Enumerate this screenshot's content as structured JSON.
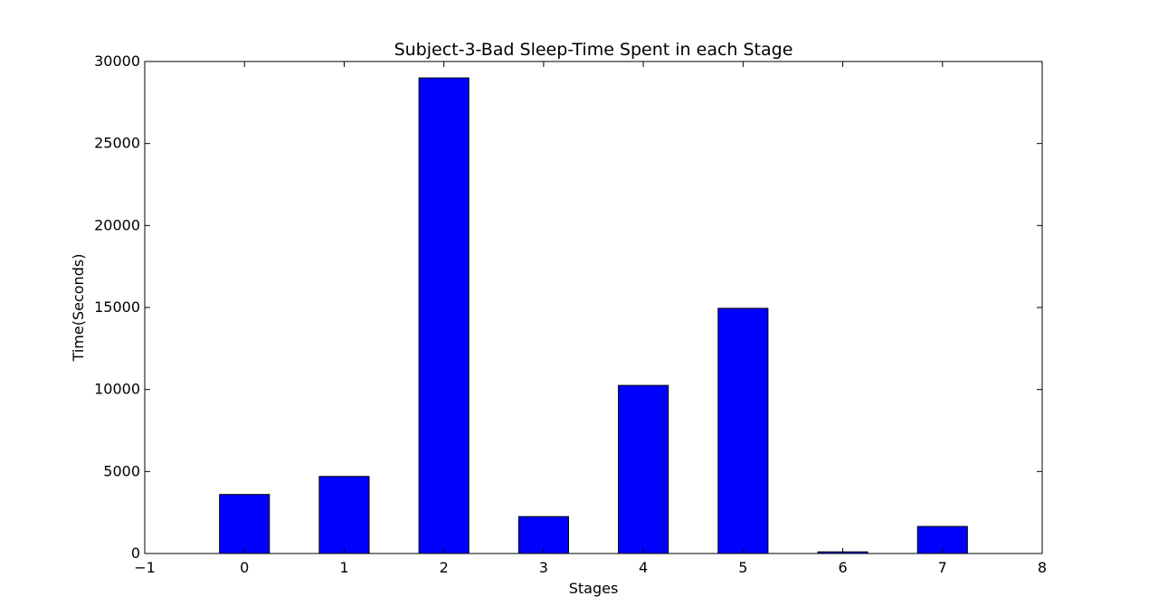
{
  "chart_data": {
    "type": "bar",
    "title": "Subject-3-Bad Sleep-Time Spent in each Stage",
    "xlabel": "Stages",
    "ylabel": "Time(Seconds)",
    "x": [
      0,
      1,
      2,
      3,
      4,
      5,
      6,
      7
    ],
    "values": [
      3600,
      4700,
      29000,
      2250,
      10250,
      14950,
      100,
      1650
    ],
    "xlim": [
      -1,
      8
    ],
    "ylim": [
      0,
      30000
    ],
    "xticks": [
      -1,
      0,
      1,
      2,
      3,
      4,
      5,
      6,
      7,
      8
    ],
    "xtick_labels": [
      "−1",
      "0",
      "1",
      "2",
      "3",
      "4",
      "5",
      "6",
      "7",
      "8"
    ],
    "yticks": [
      0,
      5000,
      10000,
      15000,
      20000,
      25000,
      30000
    ],
    "ytick_labels": [
      "0",
      "5000",
      "10000",
      "15000",
      "20000",
      "25000",
      "30000"
    ],
    "bar_width": 0.5,
    "bar_color": "#0000ff",
    "edge_color": "#000000",
    "grid": false,
    "legend": "none"
  }
}
